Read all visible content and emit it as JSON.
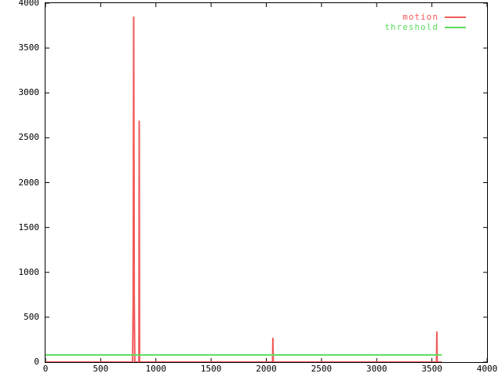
{
  "window": {
    "background": "#ffffff"
  },
  "chart_data": {
    "type": "line",
    "title": "",
    "xlabel": "",
    "ylabel": "",
    "xlim": [
      0,
      4000
    ],
    "ylim": [
      0,
      4000
    ],
    "x_ticks": [
      0,
      500,
      1000,
      1500,
      2000,
      2500,
      3000,
      3500,
      4000
    ],
    "y_ticks": [
      0,
      500,
      1000,
      1500,
      2000,
      2500,
      3000,
      3500,
      4000
    ],
    "grid": false,
    "axis_color": "#000000",
    "tick_style": "inward-mirrored",
    "legend_position": "top-right-inside",
    "series": [
      {
        "name": "motion",
        "color": "#f25b5b",
        "points": [
          [
            0,
            0
          ],
          [
            789,
            0
          ],
          [
            794,
            680
          ],
          [
            799,
            3850
          ],
          [
            804,
            680
          ],
          [
            809,
            0
          ],
          [
            846,
            0
          ],
          [
            849,
            2690
          ],
          [
            852,
            0
          ],
          [
            2057,
            0
          ],
          [
            2060,
            270
          ],
          [
            2063,
            0
          ],
          [
            3542,
            0
          ],
          [
            3545,
            340
          ],
          [
            3548,
            0
          ],
          [
            3590,
            0
          ]
        ]
      },
      {
        "name": "threshold",
        "color": "#5cdd5c",
        "points": [
          [
            0,
            80
          ],
          [
            3590,
            80
          ]
        ]
      }
    ]
  }
}
